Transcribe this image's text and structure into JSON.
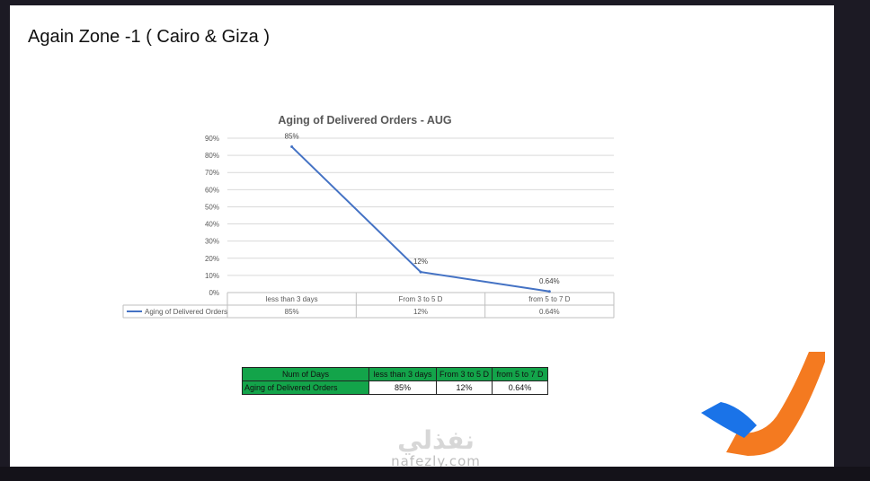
{
  "slide": {
    "title": "Again Zone -1 ( Cairo & Giza )"
  },
  "chart_data": {
    "type": "line",
    "title": "Aging of Delivered Orders - AUG",
    "categories": [
      "less than 3 days",
      "From 3  to 5 D",
      "from 5 to 7 D"
    ],
    "series": [
      {
        "name": "Aging of Delivered Orders",
        "values": [
          85,
          12,
          0.64
        ],
        "labels": [
          "85%",
          "12%",
          "0.64%"
        ]
      }
    ],
    "y_ticks": [
      "0%",
      "10%",
      "20%",
      "30%",
      "40%",
      "50%",
      "60%",
      "70%",
      "80%",
      "90%"
    ],
    "ylim": [
      0,
      90
    ],
    "grid": true,
    "legend": "data-table",
    "line_color": "#4472c4"
  },
  "summary_table": {
    "header_row": [
      "Num of Days",
      "less than 3 days",
      "From 3  to 5 D",
      "from 5 to 7 D"
    ],
    "data_row": [
      "Aging of Delivered Orders",
      "85%",
      "12%",
      "0.64%"
    ],
    "header_color": "#13a44a"
  },
  "watermark": {
    "arabic": "نفذلي",
    "latin": "nafezly.com"
  },
  "logo": {
    "icon": "nafezly-logo-icon",
    "colors": [
      "#f47a20",
      "#1a73e8"
    ]
  }
}
